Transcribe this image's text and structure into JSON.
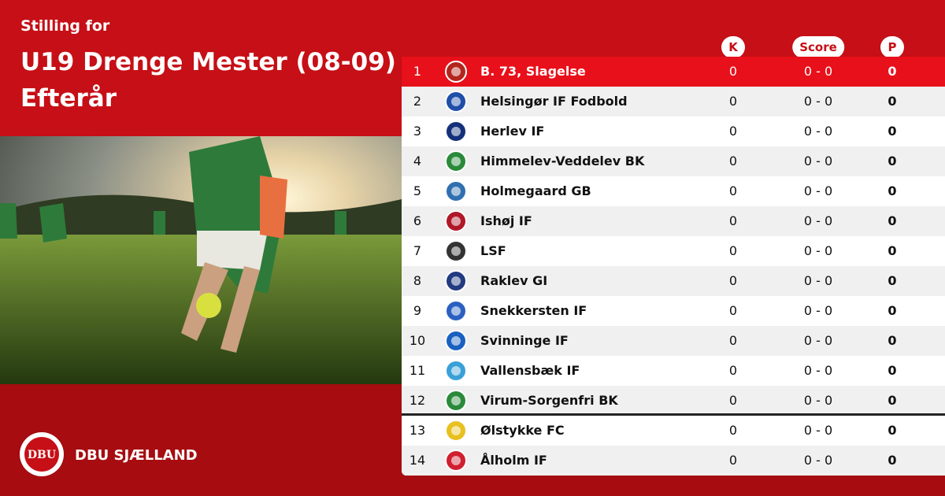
{
  "header": {
    "kicker": "Stilling for",
    "title_line1": "U19 Drenge Mester (08-09)",
    "title_line2": "Efterår"
  },
  "table": {
    "columns": [
      "K",
      "Score",
      "P"
    ],
    "rows": [
      [
        1,
        "B. 73, Slagelse",
        0,
        "0 - 0",
        0
      ],
      [
        2,
        "Helsingør IF Fodbold",
        0,
        "0 - 0",
        0
      ],
      [
        3,
        "Herlev IF",
        0,
        "0 - 0",
        0
      ],
      [
        4,
        "Himmelev-Veddelev BK",
        0,
        "0 - 0",
        0
      ],
      [
        5,
        "Holmegaard GB",
        0,
        "0 - 0",
        0
      ],
      [
        6,
        "Ishøj IF",
        0,
        "0 - 0",
        0
      ],
      [
        7,
        "LSF",
        0,
        "0 - 0",
        0
      ],
      [
        8,
        "Raklev GI",
        0,
        "0 - 0",
        0
      ],
      [
        9,
        "Snekkersten IF",
        0,
        "0 - 0",
        0
      ],
      [
        10,
        "Svinninge IF",
        0,
        "0 - 0",
        0
      ],
      [
        11,
        "Vallensbæk IF",
        0,
        "0 - 0",
        0
      ],
      [
        12,
        "Virum-Sorgenfri BK",
        0,
        "0 - 0",
        0
      ],
      [
        13,
        "Ølstykke FC",
        0,
        "0 - 0",
        0
      ],
      [
        14,
        "Ålholm IF",
        0,
        "0 - 0",
        0
      ]
    ]
  },
  "footer": {
    "logo_text": "DBU",
    "brand": "DBU SJÆLLAND"
  }
}
